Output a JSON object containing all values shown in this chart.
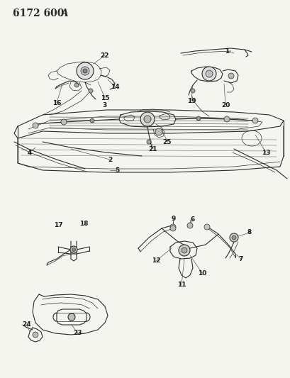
{
  "title": "6172 600 ​A",
  "bg_color": "#f5f5f0",
  "line_color": "#2a2a2a",
  "label_color": "#1a1a1a",
  "title_fontsize": 10,
  "label_fontsize": 6.5,
  "fig_width": 4.1,
  "fig_height": 5.33,
  "dpi": 100
}
